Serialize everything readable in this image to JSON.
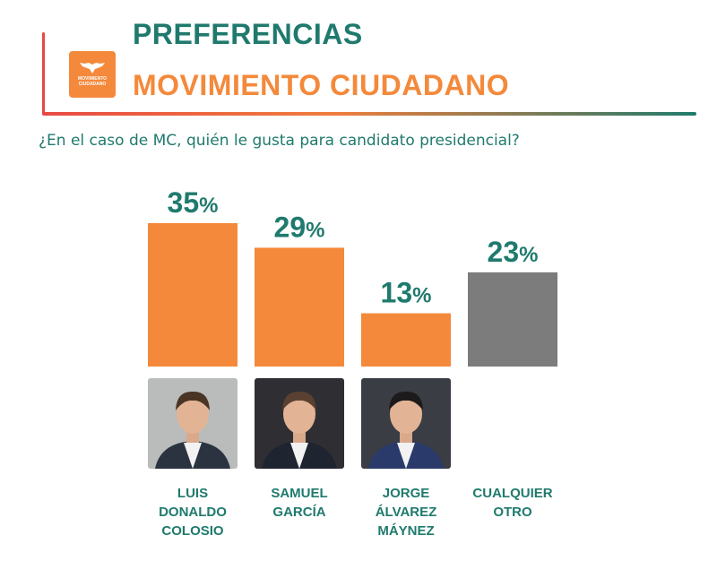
{
  "header": {
    "title_line1": "PREFERENCIAS",
    "title_line2": "MOVIMIENTO CIUDADANO",
    "logo_text_line1": "MOVIMIENTO",
    "logo_text_line2": "CIUDADANO"
  },
  "question": "¿En el caso de MC, quién le gusta para candidato presidencial?",
  "colors": {
    "teal": "#1f7a6d",
    "orange": "#f4893b",
    "gray": "#7c7c7c",
    "accent_red": "#e84a43"
  },
  "chart_data": {
    "type": "bar",
    "categories": [
      "LUIS DONALDO COLOSIO",
      "SAMUEL GARCÍA",
      "JORGE ÁLVAREZ MÁYNEZ",
      "CUALQUIER OTRO"
    ],
    "category_lines": [
      [
        "LUIS",
        "DONALDO",
        "COLOSIO"
      ],
      [
        "SAMUEL",
        "GARCÍA"
      ],
      [
        "JORGE",
        "ÁLVAREZ",
        "MÁYNEZ"
      ],
      [
        "CUALQUIER",
        "OTRO"
      ]
    ],
    "values": [
      35,
      29,
      13,
      23
    ],
    "value_labels": [
      "35%",
      "29%",
      "13%",
      "23%"
    ],
    "bar_colors": [
      "#f4893b",
      "#f4893b",
      "#f4893b",
      "#7c7c7c"
    ],
    "has_photo": [
      true,
      true,
      true,
      false
    ],
    "unit": "%",
    "ylim": [
      0,
      35
    ]
  }
}
